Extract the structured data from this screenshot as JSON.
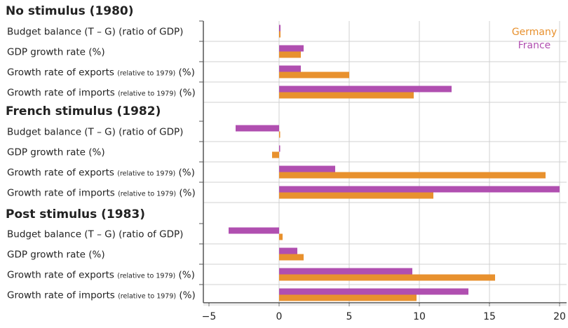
{
  "chart_data": {
    "type": "bar",
    "orientation": "horizontal",
    "xlim": [
      -5,
      20
    ],
    "xticks": [
      "−5",
      "0",
      "5",
      "10",
      "15",
      "20"
    ],
    "xtick_values": [
      -5,
      0,
      5,
      10,
      15,
      20
    ],
    "grid": true,
    "legend_placement": "top-right",
    "colors": {
      "Germany": "#e8912e",
      "France": "#b04fb0"
    },
    "legend": [
      "Germany",
      "France"
    ],
    "groups": [
      {
        "title": "No stimulus (1980)",
        "rows": [
          {
            "label": "Budget balance (T – G) (ratio of GDP)",
            "small": "",
            "suffix": "",
            "France": 0.1,
            "Germany": 0.1
          },
          {
            "label": "GDP growth rate (%)",
            "small": "",
            "suffix": "",
            "France": 1.75,
            "Germany": 1.55
          },
          {
            "label": "Growth rate of exports ",
            "small": "(relative to 1979)",
            "suffix": " (%)",
            "France": 1.55,
            "Germany": 5.0
          },
          {
            "label": "Growth rate of imports ",
            "small": "(relative to 1979)",
            "suffix": " (%)",
            "France": 12.3,
            "Germany": 9.6
          }
        ]
      },
      {
        "title": "French stimulus (1982)",
        "rows": [
          {
            "label": "Budget balance (T – G) (ratio of GDP)",
            "small": "",
            "suffix": "",
            "France": -3.1,
            "Germany": 0.05
          },
          {
            "label": "GDP growth rate (%)",
            "small": "",
            "suffix": "",
            "France": 0.05,
            "Germany": -0.5
          },
          {
            "label": "Growth rate of exports ",
            "small": "(relative to 1979)",
            "suffix": " (%)",
            "France": 4.0,
            "Germany": 19.0
          },
          {
            "label": "Growth rate of imports ",
            "small": "(relative to 1979)",
            "suffix": " (%)",
            "France": 20.0,
            "Germany": 11.0
          }
        ]
      },
      {
        "title": "Post stimulus (1983)",
        "rows": [
          {
            "label": "Budget balance (T – G) (ratio of GDP)",
            "small": "",
            "suffix": "",
            "France": -3.6,
            "Germany": 0.25
          },
          {
            "label": "GDP growth rate (%)",
            "small": "",
            "suffix": "",
            "France": 1.3,
            "Germany": 1.75
          },
          {
            "label": "Growth rate of exports ",
            "small": "(relative to 1979)",
            "suffix": " (%)",
            "France": 9.5,
            "Germany": 15.4
          },
          {
            "label": "Growth rate of imports ",
            "small": "(relative to 1979)",
            "suffix": " (%)",
            "France": 13.5,
            "Germany": 9.8
          }
        ]
      }
    ]
  }
}
